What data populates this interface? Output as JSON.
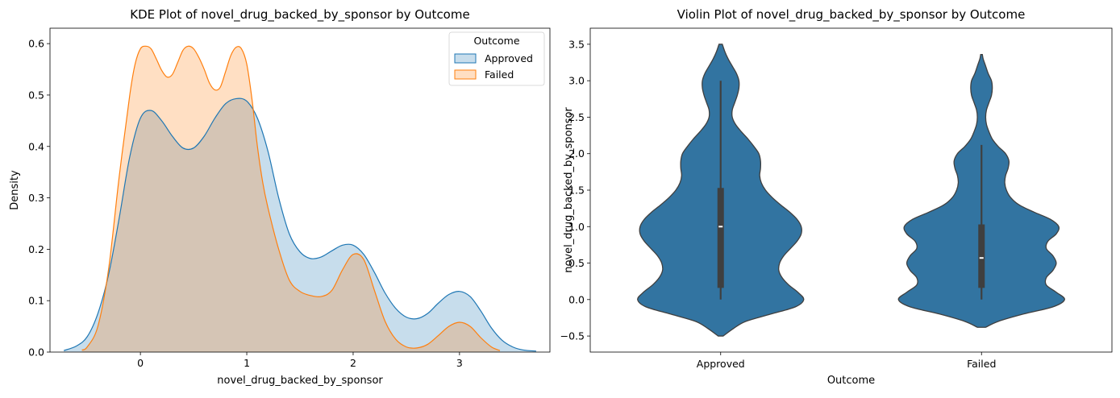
{
  "chart_data": [
    {
      "type": "area",
      "title": "KDE Plot of novel_drug_backed_by_sponsor by Outcome",
      "xlabel": "novel_drug_backed_by_sponsor",
      "ylabel": "Density",
      "xlim": [
        -0.85,
        3.85
      ],
      "ylim": [
        0,
        0.63
      ],
      "xticks": [
        0,
        1,
        2,
        3
      ],
      "yticks": [
        0.0,
        0.1,
        0.2,
        0.3,
        0.4,
        0.5,
        0.6
      ],
      "grid": false,
      "legend": {
        "title": "Outcome",
        "position": "top-right"
      },
      "series": [
        {
          "name": "Approved",
          "color": "#1f77b4",
          "x": [
            -0.72,
            -0.6,
            -0.5,
            -0.4,
            -0.3,
            -0.2,
            -0.1,
            0.0,
            0.1,
            0.2,
            0.3,
            0.4,
            0.5,
            0.6,
            0.7,
            0.8,
            0.9,
            1.0,
            1.1,
            1.2,
            1.3,
            1.4,
            1.5,
            1.6,
            1.7,
            1.8,
            1.9,
            2.0,
            2.1,
            2.2,
            2.3,
            2.4,
            2.5,
            2.6,
            2.7,
            2.8,
            2.9,
            3.0,
            3.1,
            3.2,
            3.3,
            3.4,
            3.5,
            3.6,
            3.72
          ],
          "y": [
            0.003,
            0.012,
            0.03,
            0.075,
            0.15,
            0.26,
            0.38,
            0.455,
            0.47,
            0.45,
            0.42,
            0.397,
            0.397,
            0.42,
            0.455,
            0.483,
            0.493,
            0.488,
            0.455,
            0.39,
            0.3,
            0.23,
            0.195,
            0.182,
            0.185,
            0.197,
            0.208,
            0.208,
            0.19,
            0.155,
            0.115,
            0.085,
            0.068,
            0.065,
            0.075,
            0.095,
            0.112,
            0.118,
            0.108,
            0.08,
            0.047,
            0.023,
            0.01,
            0.004,
            0.002
          ]
        },
        {
          "name": "Failed",
          "color": "#ff7f0e",
          "x": [
            -0.55,
            -0.5,
            -0.4,
            -0.3,
            -0.2,
            -0.1,
            -0.05,
            0.0,
            0.05,
            0.1,
            0.15,
            0.2,
            0.25,
            0.3,
            0.35,
            0.4,
            0.45,
            0.5,
            0.55,
            0.6,
            0.65,
            0.7,
            0.75,
            0.8,
            0.85,
            0.9,
            0.95,
            1.0,
            1.05,
            1.1,
            1.15,
            1.2,
            1.3,
            1.4,
            1.5,
            1.6,
            1.7,
            1.8,
            1.9,
            2.0,
            2.1,
            2.2,
            2.3,
            2.4,
            2.5,
            2.6,
            2.7,
            2.8,
            2.9,
            3.0,
            3.1,
            3.2,
            3.3,
            3.38
          ],
          "y": [
            0.004,
            0.01,
            0.05,
            0.16,
            0.34,
            0.5,
            0.56,
            0.59,
            0.595,
            0.59,
            0.57,
            0.548,
            0.535,
            0.54,
            0.563,
            0.587,
            0.595,
            0.59,
            0.573,
            0.55,
            0.523,
            0.51,
            0.515,
            0.545,
            0.577,
            0.593,
            0.59,
            0.56,
            0.49,
            0.4,
            0.33,
            0.28,
            0.2,
            0.14,
            0.118,
            0.11,
            0.108,
            0.12,
            0.16,
            0.19,
            0.18,
            0.12,
            0.06,
            0.025,
            0.01,
            0.008,
            0.015,
            0.032,
            0.05,
            0.058,
            0.05,
            0.028,
            0.01,
            0.003
          ]
        }
      ]
    },
    {
      "type": "violin",
      "title": "Violin Plot of novel_drug_backed_by_sponsor by Outcome",
      "xlabel": "Outcome",
      "ylabel": "novel_drug_backed_by_sponsor",
      "categories": [
        "Approved",
        "Failed"
      ],
      "ylim": [
        -0.72,
        3.72
      ],
      "yticks": [
        -0.5,
        0.0,
        0.5,
        1.0,
        1.5,
        2.0,
        2.5,
        3.0,
        3.5
      ],
      "color": "#3274a1",
      "grid": false,
      "violins": [
        {
          "category": "Approved",
          "median": 1.0,
          "q1": 0.16,
          "q3": 1.53,
          "whisker_low": 0.0,
          "whisker_high": 3.0,
          "profile_y": [
            -0.5,
            -0.4,
            -0.3,
            -0.2,
            -0.1,
            0.0,
            0.1,
            0.2,
            0.3,
            0.4,
            0.5,
            0.6,
            0.7,
            0.8,
            0.9,
            1.0,
            1.1,
            1.2,
            1.3,
            1.4,
            1.5,
            1.6,
            1.7,
            1.8,
            1.9,
            2.0,
            2.1,
            2.2,
            2.3,
            2.4,
            2.5,
            2.6,
            2.7,
            2.8,
            2.9,
            3.0,
            3.1,
            3.2,
            3.3,
            3.4,
            3.5
          ],
          "profile_w": [
            0.03,
            0.15,
            0.3,
            0.6,
            0.9,
            1.0,
            0.93,
            0.82,
            0.74,
            0.7,
            0.71,
            0.76,
            0.84,
            0.92,
            0.97,
            0.97,
            0.92,
            0.83,
            0.72,
            0.62,
            0.54,
            0.49,
            0.47,
            0.48,
            0.48,
            0.46,
            0.4,
            0.33,
            0.25,
            0.18,
            0.14,
            0.14,
            0.17,
            0.2,
            0.22,
            0.22,
            0.19,
            0.14,
            0.09,
            0.05,
            0.02
          ]
        },
        {
          "category": "Failed",
          "median": 0.57,
          "q1": 0.16,
          "q3": 1.03,
          "whisker_low": 0.0,
          "whisker_high": 2.12,
          "profile_y": [
            -0.38,
            -0.3,
            -0.2,
            -0.1,
            0.0,
            0.1,
            0.2,
            0.3,
            0.4,
            0.5,
            0.6,
            0.7,
            0.8,
            0.9,
            1.0,
            1.1,
            1.2,
            1.3,
            1.4,
            1.5,
            1.6,
            1.7,
            1.8,
            1.9,
            2.0,
            2.1,
            2.2,
            2.3,
            2.4,
            2.5,
            2.6,
            2.7,
            2.8,
            2.9,
            3.0,
            3.1,
            3.2,
            3.3,
            3.36
          ],
          "profile_w": [
            0.05,
            0.2,
            0.5,
            0.86,
            1.0,
            0.9,
            0.78,
            0.78,
            0.86,
            0.9,
            0.86,
            0.78,
            0.8,
            0.9,
            0.93,
            0.83,
            0.63,
            0.45,
            0.35,
            0.3,
            0.28,
            0.29,
            0.32,
            0.33,
            0.29,
            0.2,
            0.13,
            0.09,
            0.06,
            0.05,
            0.06,
            0.09,
            0.12,
            0.13,
            0.12,
            0.08,
            0.05,
            0.02,
            0.01
          ]
        }
      ]
    }
  ]
}
